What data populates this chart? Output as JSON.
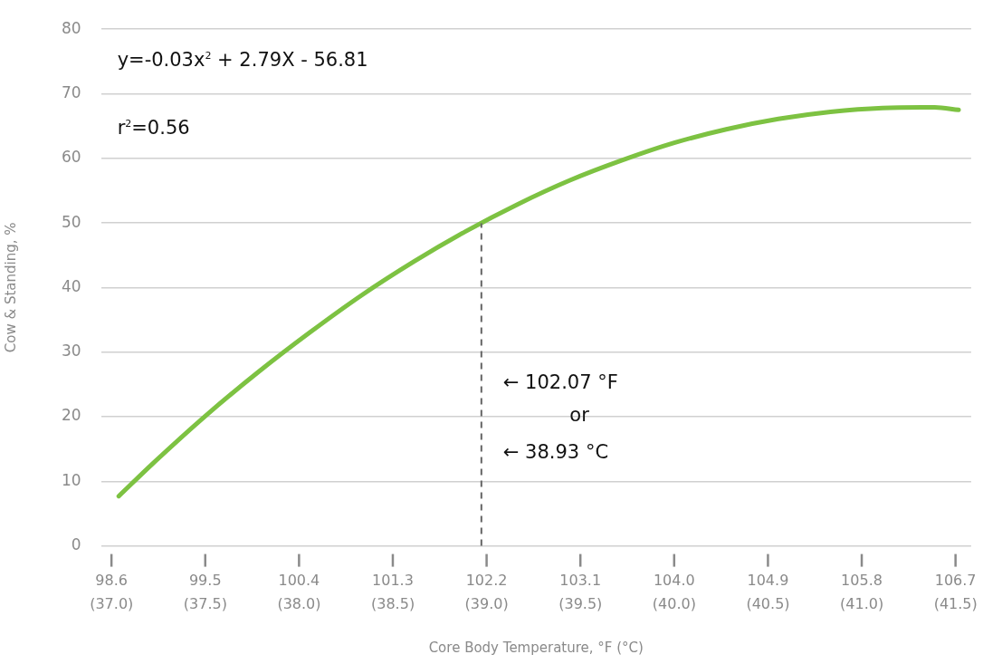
{
  "chart_data": {
    "type": "line",
    "xlabel": "Core Body Temperature, °F (°C)",
    "ylabel": "Cow & Standing, %",
    "x": [
      98.67,
      99,
      99.5,
      100,
      100.5,
      101,
      101.5,
      102,
      102.5,
      103,
      103.5,
      104,
      104.5,
      105,
      105.5,
      106,
      106.5,
      106.73
    ],
    "series": [
      {
        "color": "#7dc242",
        "values": [
          7.7,
          12.8,
          20.1,
          26.8,
          33,
          38.8,
          44,
          48.7,
          52.9,
          56.6,
          59.7,
          62.4,
          64.5,
          66.1,
          67.2,
          67.8,
          67.9,
          67.5
        ]
      }
    ],
    "xlim": [
      98.5,
      106.85
    ],
    "xticks": [
      98.6,
      99.5,
      100.4,
      101.3,
      102.2,
      103.1,
      {
        "value": 104,
        "label": "104.0"
      },
      104.9,
      105.8,
      106.7
    ],
    "x2lim": [
      36.944,
      41.583
    ],
    "x2ticks": [
      {
        "value": 37,
        "label": "(37.0)"
      },
      {
        "value": 37.5,
        "label": "(37.5)"
      },
      {
        "value": 38,
        "label": "(38.0)"
      },
      {
        "value": 38.5,
        "label": "(38.5)"
      },
      {
        "value": 39,
        "label": "(39.0)"
      },
      {
        "value": 39.5,
        "label": "(39.5)"
      },
      {
        "value": 40,
        "label": "(40.0)"
      },
      {
        "value": 40.5,
        "label": "(40.5)"
      },
      {
        "value": 41,
        "label": "(41.0)"
      },
      {
        "value": 41.5,
        "label": "(41.5)"
      }
    ],
    "ylim": [
      0,
      80
    ],
    "yticks": [
      0,
      10,
      20,
      30,
      40,
      50,
      60,
      70,
      80
    ],
    "grid": "y",
    "legend": false,
    "marker": "none",
    "line_style": "solid",
    "ref_lines": [
      {
        "axis": "x",
        "value": 102.15,
        "color": "#666666",
        "line_style": "dashed"
      }
    ],
    "annotations": [
      "y=-0.03x$^{2}$ + 2.79X - 56.81",
      "r$^{2}$=0.56",
      "← 102.07 °F",
      "or",
      "← 38.93 °C"
    ]
  }
}
